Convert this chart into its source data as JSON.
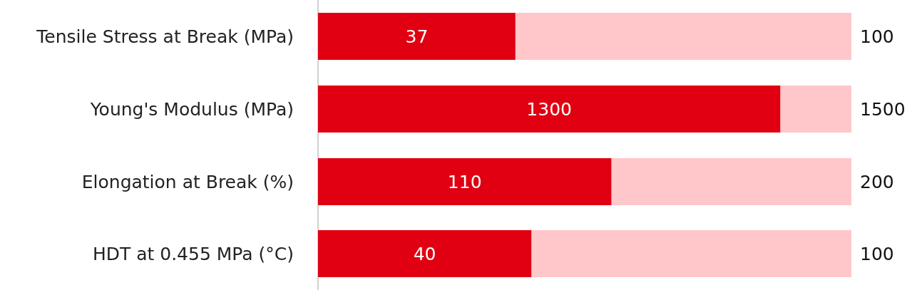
{
  "chart_data": [
    {
      "type": "bar",
      "orientation": "horizontal",
      "stacked": true,
      "totals": [
        "100"
      ],
      "categories": [
        "Tensile Stress at Break (MPa)"
      ],
      "series": [
        {
          "color": "#e00012",
          "values": [
            37
          ],
          "value_labels": [
            "37"
          ]
        },
        {
          "color": "#ffc7ca",
          "values": [
            63
          ]
        }
      ]
    },
    {
      "type": "bar",
      "orientation": "horizontal",
      "stacked": true,
      "totals": [
        "1500"
      ],
      "categories": [
        "Young's Modulus (MPa)"
      ],
      "series": [
        {
          "color": "#e00012",
          "values": [
            1300
          ],
          "value_labels": [
            "1300"
          ]
        },
        {
          "color": "#ffc7ca",
          "values": [
            200
          ]
        }
      ]
    },
    {
      "type": "bar",
      "orientation": "horizontal",
      "stacked": true,
      "totals": [
        "200"
      ],
      "categories": [
        "Elongation at Break (%)"
      ],
      "series": [
        {
          "color": "#e00012",
          "values": [
            110
          ],
          "value_labels": [
            "110"
          ]
        },
        {
          "color": "#ffc7ca",
          "values": [
            90
          ]
        }
      ]
    },
    {
      "type": "bar",
      "orientation": "horizontal",
      "stacked": true,
      "totals": [
        "100"
      ],
      "categories": [
        "HDT at 0.455 MPa (°C)"
      ],
      "series": [
        {
          "color": "#e00012",
          "values": [
            40
          ],
          "value_labels": [
            "40"
          ]
        },
        {
          "color": "#ffc7ca",
          "values": [
            60
          ]
        }
      ]
    }
  ]
}
